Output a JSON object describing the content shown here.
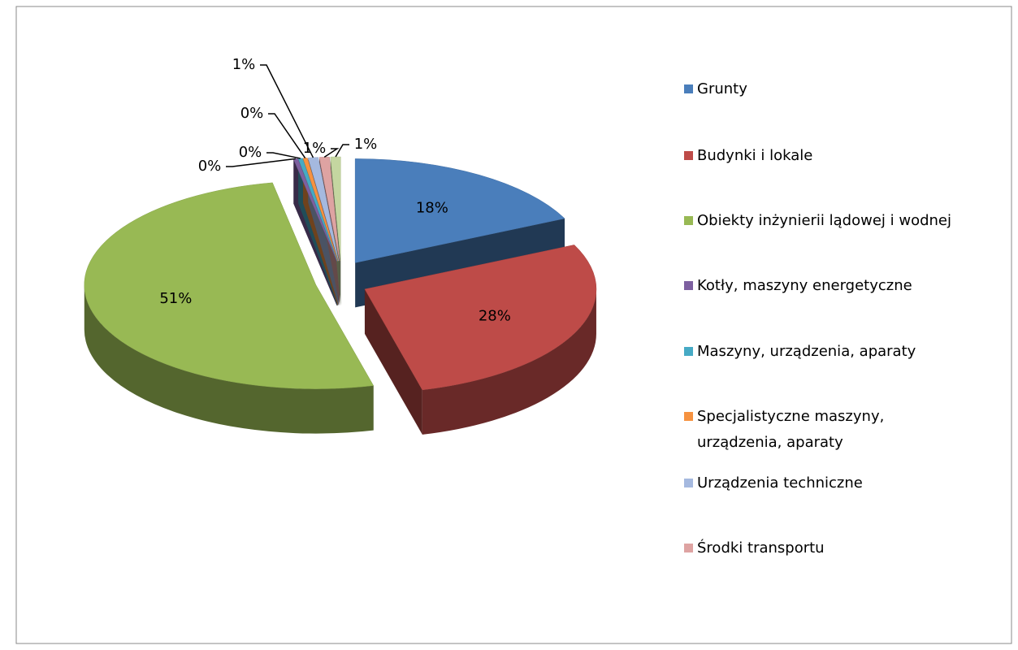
{
  "chart_data": {
    "type": "pie3d",
    "categories": [
      "Grunty",
      "Budynki i lokale",
      "Obiekty inżynierii lądowej i wodnej",
      "Kotły, maszyny energetyczne",
      "Maszyny, urządzenia, aparaty",
      "Specjalistyczne maszyny, urządzenia, aparaty",
      "Urządzenia techniczne",
      "Środki transportu",
      null
    ],
    "values": [
      18,
      28,
      51,
      0.3,
      0.3,
      0.3,
      0.7,
      0.7,
      0.7
    ],
    "value_labels": [
      "18%",
      "28%",
      "51%",
      "0%",
      "0%",
      "0%",
      "1%",
      "1%",
      "1%"
    ],
    "colors": [
      "#4a7ebb",
      "#be4b48",
      "#98b954",
      "#7d60a0",
      "#46aac5",
      "#f69240",
      "#a5b9df",
      "#dea3a2",
      "#c4d6a0"
    ],
    "legend": "right"
  }
}
